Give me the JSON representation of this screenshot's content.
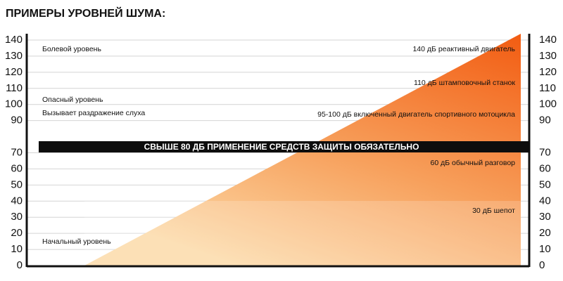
{
  "title": "ПРИМЕРЫ УРОВНЕЙ ШУМА:",
  "axis": {
    "ticks": [
      0,
      10,
      20,
      30,
      40,
      50,
      60,
      70,
      90,
      100,
      110,
      120,
      130,
      140
    ]
  },
  "left_labels": [
    "Болевой уровень",
    "Опасный уровень",
    "Вызывает раздражение слуха",
    "Начальный уровень"
  ],
  "right_labels": [
    "140 дБ реактивный двигатель",
    "110 дБ штамповочный станок",
    "95-100 дБ включенный двигатель спортивного мотоцикла",
    "60 дБ обычный разговор",
    "30 дБ шепот"
  ],
  "banner": "СВЫШЕ 80 ДБ ПРИМЕНЕНИЕ СРЕДСТВ ЗАЩИТЫ ОБЯЗАТЕЛЬНО"
}
